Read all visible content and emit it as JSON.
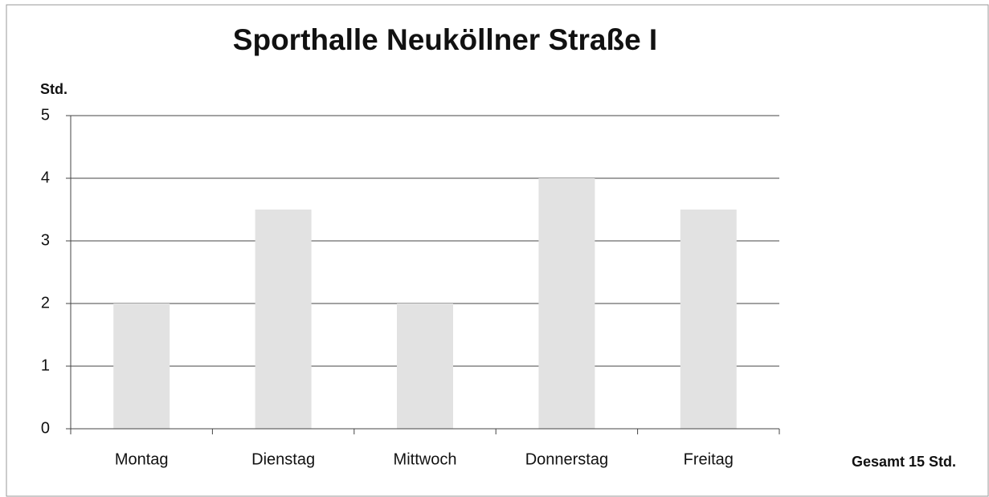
{
  "chart_data": {
    "type": "bar",
    "title": "Sporthalle Neuköllner Straße I",
    "y_label": "Std.",
    "annotation": "Gesamt 15 Std.",
    "categories": [
      "Montag",
      "Dienstag",
      "Mittwoch",
      "Donnerstag",
      "Freitag"
    ],
    "values": [
      2,
      3.5,
      2,
      4,
      3.5
    ],
    "color": "#e2e2e2",
    "ylim": [
      0,
      5
    ],
    "yticks": [
      0,
      1,
      2,
      3,
      4,
      5
    ],
    "grid": true
  }
}
